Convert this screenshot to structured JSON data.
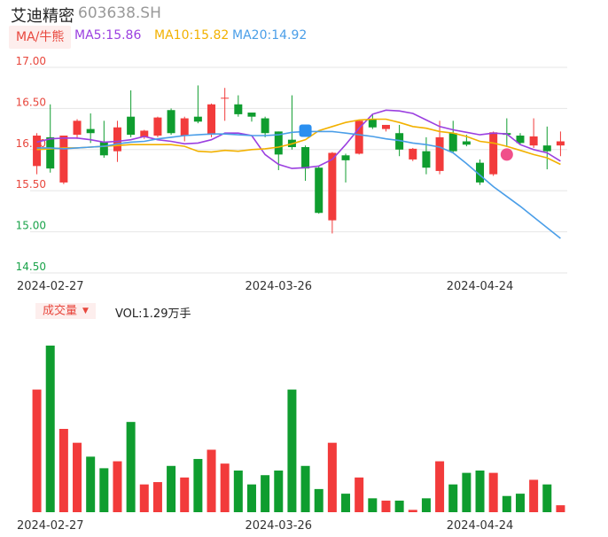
{
  "header": {
    "stock_name": "艾迪精密",
    "stock_code": "603638.SH"
  },
  "ma_legend": {
    "badge": "MA/牛熊",
    "ma5": "MA5:15.86",
    "ma10": "MA10:15.82",
    "ma20": "MA20:14.92"
  },
  "volume_legend": {
    "badge": "成交量",
    "caret": "▼",
    "vol": "VOL:1.29万手"
  },
  "colors": {
    "up": "#f23b3b",
    "down": "#0f9d2f",
    "ma5": "#9b3fe0",
    "ma10": "#f2b100",
    "ma20": "#4a9ee8",
    "grid": "#e6e6e6",
    "axis_up": "#e8473d",
    "axis_down": "#1aa34a"
  },
  "chart_data": {
    "type": "candlestick",
    "y_ticks": [
      "17.00",
      "16.50",
      "16.00",
      "15.50",
      "15.00",
      "14.50"
    ],
    "ylim": [
      14.5,
      17.0
    ],
    "x_tick_labels": [
      {
        "index": 1,
        "label": "2024-02-27"
      },
      {
        "index": 18,
        "label": "2024-03-26"
      },
      {
        "index": 33,
        "label": "2024-04-24"
      }
    ],
    "candles": [
      {
        "o": 15.8,
        "c": 16.17,
        "h": 16.2,
        "l": 15.7
      },
      {
        "o": 16.15,
        "c": 15.77,
        "h": 16.55,
        "l": 15.72
      },
      {
        "o": 15.6,
        "c": 16.17,
        "h": 16.17,
        "l": 15.58
      },
      {
        "o": 16.18,
        "c": 16.35,
        "h": 16.37,
        "l": 16.13
      },
      {
        "o": 16.25,
        "c": 16.2,
        "h": 16.44,
        "l": 16.08
      },
      {
        "o": 16.1,
        "c": 15.93,
        "h": 16.35,
        "l": 15.9
      },
      {
        "o": 15.98,
        "c": 16.27,
        "h": 16.35,
        "l": 15.85
      },
      {
        "o": 16.4,
        "c": 16.18,
        "h": 16.72,
        "l": 16.15
      },
      {
        "o": 16.15,
        "c": 16.23,
        "h": 16.24,
        "l": 16.13
      },
      {
        "o": 16.17,
        "c": 16.39,
        "h": 16.4,
        "l": 16.15
      },
      {
        "o": 16.48,
        "c": 16.2,
        "h": 16.5,
        "l": 16.18
      },
      {
        "o": 16.17,
        "c": 16.38,
        "h": 16.4,
        "l": 16.1
      },
      {
        "o": 16.4,
        "c": 16.34,
        "h": 16.78,
        "l": 16.32
      },
      {
        "o": 16.18,
        "c": 16.55,
        "h": 16.56,
        "l": 16.15
      },
      {
        "o": 16.62,
        "c": 16.63,
        "h": 16.75,
        "l": 16.35
      },
      {
        "o": 16.55,
        "c": 16.43,
        "h": 16.66,
        "l": 16.4
      },
      {
        "o": 16.45,
        "c": 16.4,
        "h": 16.45,
        "l": 16.34
      },
      {
        "o": 16.38,
        "c": 16.2,
        "h": 16.4,
        "l": 16.15
      },
      {
        "o": 16.22,
        "c": 15.94,
        "h": 16.22,
        "l": 15.75
      },
      {
        "o": 16.12,
        "c": 16.03,
        "h": 16.66,
        "l": 16.0
      },
      {
        "o": 16.03,
        "c": 15.77,
        "h": 16.05,
        "l": 15.62
      },
      {
        "o": 15.78,
        "c": 15.23,
        "h": 15.8,
        "l": 15.22
      },
      {
        "o": 15.14,
        "c": 15.96,
        "h": 15.97,
        "l": 14.98
      },
      {
        "o": 15.93,
        "c": 15.87,
        "h": 15.95,
        "l": 15.6
      },
      {
        "o": 15.95,
        "c": 16.35,
        "h": 16.36,
        "l": 15.94
      },
      {
        "o": 16.37,
        "c": 16.27,
        "h": 16.43,
        "l": 16.25
      },
      {
        "o": 16.25,
        "c": 16.3,
        "h": 16.3,
        "l": 16.22
      },
      {
        "o": 16.2,
        "c": 16.0,
        "h": 16.3,
        "l": 15.92
      },
      {
        "o": 15.88,
        "c": 16.01,
        "h": 16.02,
        "l": 15.86
      },
      {
        "o": 15.98,
        "c": 15.78,
        "h": 16.15,
        "l": 15.7
      },
      {
        "o": 15.74,
        "c": 16.15,
        "h": 16.35,
        "l": 15.7
      },
      {
        "o": 16.2,
        "c": 15.98,
        "h": 16.35,
        "l": 15.96
      },
      {
        "o": 16.1,
        "c": 16.06,
        "h": 16.18,
        "l": 16.04
      },
      {
        "o": 15.84,
        "c": 15.6,
        "h": 15.88,
        "l": 15.57
      },
      {
        "o": 15.7,
        "c": 16.21,
        "h": 16.22,
        "l": 15.68
      },
      {
        "o": 16.2,
        "c": 16.18,
        "h": 16.38,
        "l": 16.03
      },
      {
        "o": 16.17,
        "c": 16.08,
        "h": 16.2,
        "l": 16.06
      },
      {
        "o": 16.05,
        "c": 16.16,
        "h": 16.38,
        "l": 16.02
      },
      {
        "o": 16.05,
        "c": 15.98,
        "h": 16.28,
        "l": 15.76
      },
      {
        "o": 16.05,
        "c": 16.1,
        "h": 16.22,
        "l": 15.92
      }
    ],
    "series": [
      {
        "name": "MA5",
        "values": [
          16.09,
          16.13,
          16.14,
          16.14,
          16.12,
          16.09,
          16.1,
          16.12,
          16.16,
          16.12,
          16.1,
          16.07,
          16.08,
          16.12,
          16.2,
          16.2,
          16.17,
          15.94,
          15.82,
          15.77,
          15.78,
          15.8,
          15.88,
          16.06,
          16.26,
          16.43,
          16.48,
          16.47,
          16.44,
          16.36,
          16.28,
          16.24,
          16.21,
          16.18,
          16.2,
          16.19,
          16.06,
          16.0,
          15.96,
          15.86
        ]
      },
      {
        "name": "MA10",
        "values": [
          16.0,
          16.01,
          16.02,
          16.02,
          16.03,
          16.04,
          16.05,
          16.06,
          16.06,
          16.06,
          16.06,
          16.04,
          15.98,
          15.97,
          15.99,
          15.98,
          16.0,
          16.01,
          16.03,
          16.07,
          16.12,
          16.23,
          16.28,
          16.33,
          16.36,
          16.37,
          16.37,
          16.33,
          16.28,
          16.26,
          16.22,
          16.2,
          16.16,
          16.1,
          16.08,
          16.04,
          15.99,
          15.94,
          15.9,
          15.82
        ]
      },
      {
        "name": "MA20",
        "values": [
          16.02,
          16.02,
          16.01,
          16.02,
          16.03,
          16.04,
          16.07,
          16.09,
          16.1,
          16.13,
          16.15,
          16.17,
          16.18,
          16.19,
          16.19,
          16.18,
          16.17,
          16.17,
          16.18,
          16.21,
          16.22,
          16.22,
          16.22,
          16.2,
          16.18,
          16.16,
          16.13,
          16.11,
          16.08,
          16.06,
          16.03,
          15.96,
          15.83,
          15.69,
          15.55,
          15.43,
          15.31,
          15.18,
          15.05,
          14.92
        ]
      }
    ],
    "volume": [
      0.53,
      0.72,
      0.36,
      0.3,
      0.24,
      0.19,
      0.22,
      0.39,
      0.12,
      0.13,
      0.2,
      0.15,
      0.23,
      0.27,
      0.21,
      0.18,
      0.12,
      0.16,
      0.18,
      0.53,
      0.2,
      0.1,
      0.3,
      0.08,
      0.15,
      0.06,
      0.05,
      0.05,
      0.01,
      0.06,
      0.22,
      0.12,
      0.17,
      0.18,
      0.17,
      0.07,
      0.08,
      0.14,
      0.12,
      0.03
    ]
  }
}
